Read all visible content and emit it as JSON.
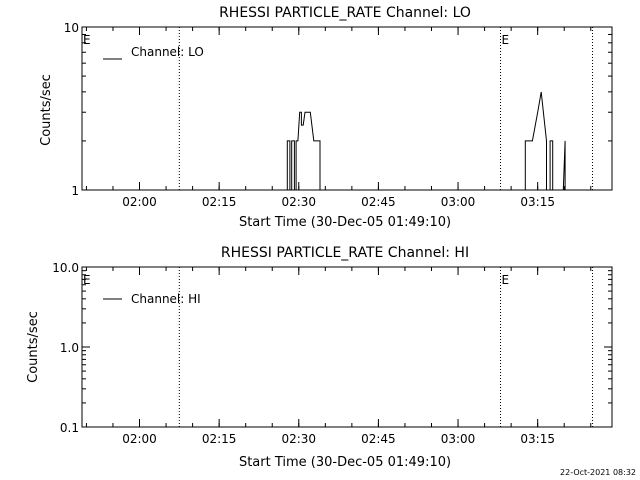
{
  "footer": {
    "timestamp": "22-Oct-2021 08:32"
  },
  "chart_data": [
    {
      "type": "line",
      "title": "RHESSI PARTICLE_RATE Channel: LO",
      "xlabel": "Start Time (30-Dec-05 01:49:10)",
      "ylabel": "Counts/sec",
      "yscale": "log",
      "ylim": [
        1,
        10
      ],
      "xlim": [
        "01:49:10",
        "03:29:00"
      ],
      "x_ticks": [
        "02:00",
        "02:15",
        "02:30",
        "02:45",
        "03:00",
        "03:15"
      ],
      "y_ticks": [
        "1",
        "10"
      ],
      "legend": {
        "entries": [
          "Channel: LO"
        ],
        "placement": "top-left"
      },
      "markers": [
        {
          "label": "E",
          "time": "01:49:10",
          "dotted": false
        },
        {
          "label": "",
          "time": "02:07:30",
          "dotted": true
        },
        {
          "label": "E",
          "time": "03:08:00",
          "dotted": true
        },
        {
          "label": "",
          "time": "03:25:20",
          "dotted": true
        }
      ],
      "series": [
        {
          "name": "Channel: LO",
          "segments": [
            [
              [
                "02:27:50",
                1
              ],
              [
                "02:27:50",
                2
              ],
              [
                "02:28:20",
                2
              ],
              [
                "02:28:20",
                1
              ],
              [
                "02:28:40",
                1
              ],
              [
                "02:28:40",
                2
              ],
              [
                "02:29:10",
                2
              ],
              [
                "02:29:10",
                1
              ],
              [
                "02:29:30",
                1
              ],
              [
                "02:29:30",
                2
              ],
              [
                "02:29:50",
                2
              ],
              [
                "02:30:10",
                3
              ],
              [
                "02:30:30",
                3
              ],
              [
                "02:30:30",
                2.5
              ],
              [
                "02:30:50",
                2.5
              ],
              [
                "02:31:10",
                3
              ],
              [
                "02:32:10",
                3
              ],
              [
                "02:32:50",
                2
              ],
              [
                "02:34:00",
                2
              ],
              [
                "02:34:00",
                1
              ]
            ],
            [
              [
                "03:12:40",
                1
              ],
              [
                "03:12:40",
                2
              ],
              [
                "03:14:00",
                2
              ],
              [
                "03:15:00",
                3
              ],
              [
                "03:15:40",
                4
              ],
              [
                "03:16:40",
                2
              ],
              [
                "03:16:40",
                1
              ],
              [
                "03:17:20",
                1
              ],
              [
                "03:17:20",
                2
              ],
              [
                "03:17:50",
                2
              ],
              [
                "03:17:50",
                1
              ],
              [
                "03:19:50",
                1
              ],
              [
                "03:20:10",
                2
              ],
              [
                "03:20:10",
                1
              ]
            ]
          ]
        }
      ]
    },
    {
      "type": "line",
      "title": "RHESSI PARTICLE_RATE Channel: HI",
      "xlabel": "Start Time (30-Dec-05 01:49:10)",
      "ylabel": "Counts/sec",
      "yscale": "log",
      "ylim": [
        0.1,
        10
      ],
      "xlim": [
        "01:49:10",
        "03:29:00"
      ],
      "x_ticks": [
        "02:00",
        "02:15",
        "02:30",
        "02:45",
        "03:00",
        "03:15"
      ],
      "y_ticks": [
        "0.1",
        "1.0",
        "10.0"
      ],
      "legend": {
        "entries": [
          "Channel: HI"
        ],
        "placement": "top-left"
      },
      "markers": [
        {
          "label": "E",
          "time": "01:49:10",
          "dotted": false
        },
        {
          "label": "",
          "time": "02:07:30",
          "dotted": true
        },
        {
          "label": "E",
          "time": "03:08:00",
          "dotted": true
        },
        {
          "label": "",
          "time": "03:25:20",
          "dotted": true
        }
      ],
      "series": [
        {
          "name": "Channel: HI",
          "segments": []
        }
      ]
    }
  ]
}
